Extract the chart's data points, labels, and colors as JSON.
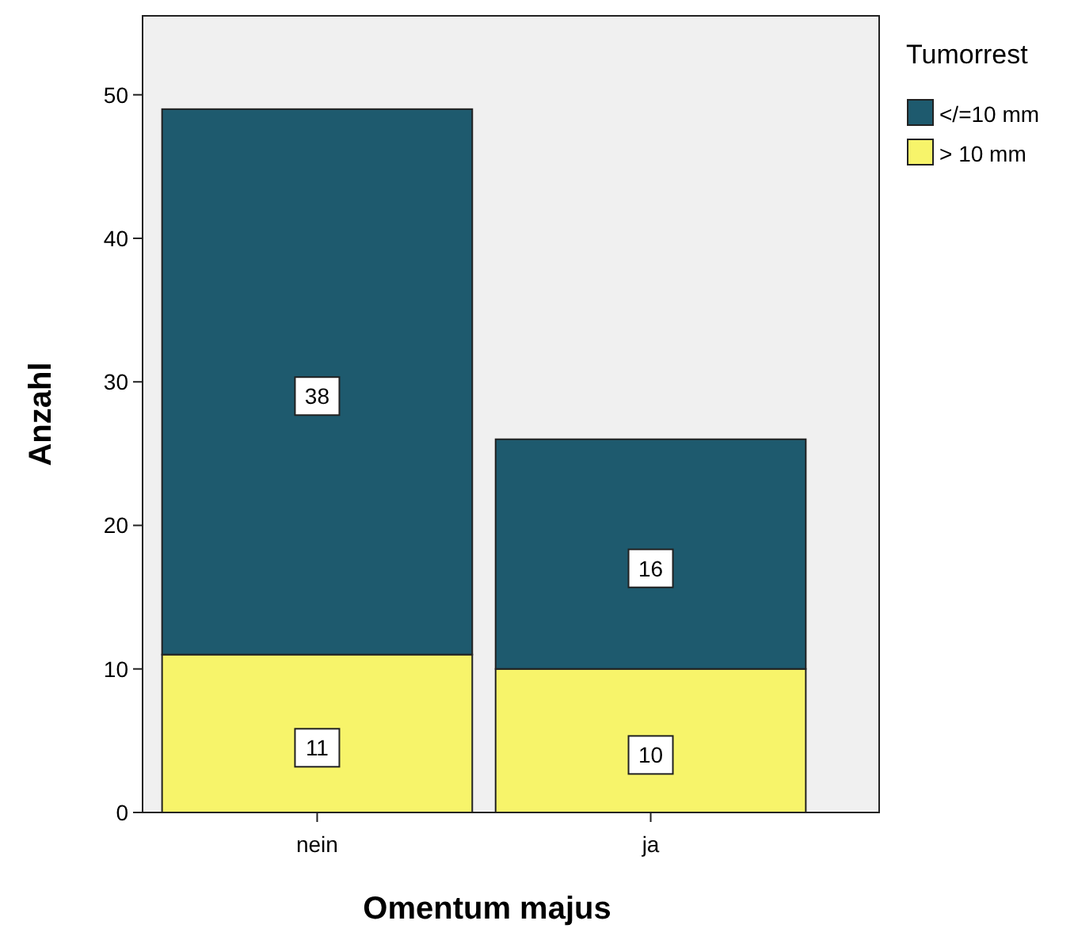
{
  "chart_data": {
    "type": "bar",
    "stacked": true,
    "xlabel": "Omentum majus",
    "ylabel": "Anzahl",
    "legend_title": "Tumorrest",
    "categories": [
      "nein",
      "ja"
    ],
    "series": [
      {
        "name": "> 10 mm",
        "color": "#f7f46a",
        "values": [
          11,
          10
        ]
      },
      {
        "name": "</=10 mm",
        "color": "#1e5a6e",
        "values": [
          38,
          16
        ]
      }
    ],
    "ylim": [
      0,
      55.5
    ],
    "yticks": [
      0,
      10,
      20,
      30,
      40,
      50
    ],
    "grid": false,
    "legend": "top right",
    "data_labels": true
  }
}
